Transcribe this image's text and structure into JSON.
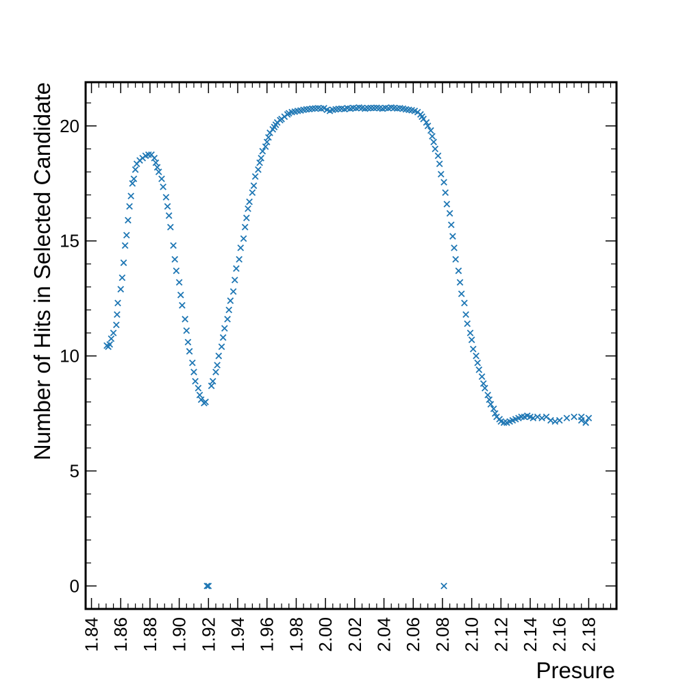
{
  "chart_data": {
    "type": "scatter",
    "title": "",
    "xlabel": "Presure",
    "ylabel": "Number of Hits in Selected Candidate",
    "xlim": [
      1.836,
      2.199
    ],
    "ylim": [
      -1.0,
      21.9
    ],
    "x_ticks": [
      "1.84",
      "1.86",
      "1.88",
      "1.90",
      "1.92",
      "1.94",
      "1.96",
      "1.98",
      "2.00",
      "2.02",
      "2.04",
      "2.06",
      "2.08",
      "2.10",
      "2.12",
      "2.14",
      "2.16",
      "2.18"
    ],
    "y_ticks": [
      "0",
      "5",
      "10",
      "15",
      "20"
    ],
    "marker": "x",
    "color": "#1f77b4",
    "grid": false,
    "series": [
      {
        "points": [
          [
            1.8505,
            10.45
          ],
          [
            1.8515,
            10.4
          ],
          [
            1.8525,
            10.5
          ],
          [
            1.8535,
            10.75
          ],
          [
            1.855,
            11.0
          ],
          [
            1.857,
            11.35
          ],
          [
            1.8575,
            11.8
          ],
          [
            1.858,
            12.3
          ],
          [
            1.86,
            12.9
          ],
          [
            1.861,
            13.4
          ],
          [
            1.862,
            14.05
          ],
          [
            1.863,
            14.8
          ],
          [
            1.864,
            15.25
          ],
          [
            1.865,
            15.9
          ],
          [
            1.866,
            16.5
          ],
          [
            1.867,
            16.95
          ],
          [
            1.868,
            17.5
          ],
          [
            1.869,
            17.7
          ],
          [
            1.87,
            18.1
          ],
          [
            1.871,
            18.35
          ],
          [
            1.873,
            18.5
          ],
          [
            1.875,
            18.6
          ],
          [
            1.877,
            18.7
          ],
          [
            1.879,
            18.75
          ],
          [
            1.881,
            18.75
          ],
          [
            1.883,
            18.6
          ],
          [
            1.884,
            18.4
          ],
          [
            1.885,
            18.2
          ],
          [
            1.886,
            18.0
          ],
          [
            1.888,
            17.7
          ],
          [
            1.889,
            17.35
          ],
          [
            1.891,
            16.9
          ],
          [
            1.892,
            16.5
          ],
          [
            1.893,
            16.1
          ],
          [
            1.894,
            15.6
          ],
          [
            1.896,
            14.8
          ],
          [
            1.897,
            14.2
          ],
          [
            1.898,
            13.7
          ],
          [
            1.9,
            13.2
          ],
          [
            1.901,
            12.65
          ],
          [
            1.902,
            12.2
          ],
          [
            1.904,
            11.6
          ],
          [
            1.905,
            11.1
          ],
          [
            1.906,
            10.6
          ],
          [
            1.907,
            10.2
          ],
          [
            1.909,
            9.7
          ],
          [
            1.91,
            9.3
          ],
          [
            1.911,
            8.9
          ],
          [
            1.913,
            8.6
          ],
          [
            1.914,
            8.3
          ],
          [
            1.915,
            8.1
          ],
          [
            1.917,
            7.95
          ],
          [
            1.918,
            8.0
          ],
          [
            1.919,
            0.0
          ],
          [
            1.92,
            0.0
          ],
          [
            1.922,
            8.7
          ],
          [
            1.923,
            8.9
          ],
          [
            1.925,
            9.3
          ],
          [
            1.926,
            9.6
          ],
          [
            1.927,
            10.0
          ],
          [
            1.929,
            10.4
          ],
          [
            1.93,
            10.8
          ],
          [
            1.931,
            11.2
          ],
          [
            1.933,
            11.6
          ],
          [
            1.934,
            12.0
          ],
          [
            1.935,
            12.4
          ],
          [
            1.937,
            12.8
          ],
          [
            1.938,
            13.3
          ],
          [
            1.939,
            13.8
          ],
          [
            1.941,
            14.2
          ],
          [
            1.942,
            14.7
          ],
          [
            1.944,
            15.1
          ],
          [
            1.945,
            15.6
          ],
          [
            1.946,
            16.0
          ],
          [
            1.947,
            16.4
          ],
          [
            1.948,
            16.7
          ],
          [
            1.95,
            17.1
          ],
          [
            1.951,
            17.4
          ],
          [
            1.952,
            17.8
          ],
          [
            1.954,
            18.1
          ],
          [
            1.955,
            18.4
          ],
          [
            1.956,
            18.6
          ],
          [
            1.957,
            18.9
          ],
          [
            1.959,
            19.1
          ],
          [
            1.96,
            19.3
          ],
          [
            1.961,
            19.5
          ],
          [
            1.962,
            19.7
          ],
          [
            1.964,
            19.85
          ],
          [
            1.965,
            19.95
          ],
          [
            1.966,
            20.05
          ],
          [
            1.967,
            20.15
          ],
          [
            1.969,
            20.25
          ],
          [
            1.97,
            20.3
          ],
          [
            1.972,
            20.4
          ],
          [
            1.974,
            20.5
          ],
          [
            1.975,
            20.55
          ],
          [
            1.977,
            20.6
          ],
          [
            1.979,
            20.62
          ],
          [
            1.981,
            20.65
          ],
          [
            1.983,
            20.67
          ],
          [
            1.985,
            20.7
          ],
          [
            1.987,
            20.72
          ],
          [
            1.989,
            20.73
          ],
          [
            1.991,
            20.75
          ],
          [
            1.993,
            20.76
          ],
          [
            1.995,
            20.77
          ],
          [
            1.997,
            20.75
          ],
          [
            1.999,
            20.77
          ],
          [
            2.001,
            20.7
          ],
          [
            2.003,
            20.65
          ],
          [
            2.005,
            20.7
          ],
          [
            2.007,
            20.72
          ],
          [
            2.009,
            20.74
          ],
          [
            2.011,
            20.75
          ],
          [
            2.013,
            20.73
          ],
          [
            2.015,
            20.77
          ],
          [
            2.017,
            20.75
          ],
          [
            2.019,
            20.78
          ],
          [
            2.021,
            20.77
          ],
          [
            2.023,
            20.8
          ],
          [
            2.025,
            20.78
          ],
          [
            2.027,
            20.75
          ],
          [
            2.029,
            20.77
          ],
          [
            2.031,
            20.78
          ],
          [
            2.033,
            20.78
          ],
          [
            2.035,
            20.79
          ],
          [
            2.037,
            20.77
          ],
          [
            2.039,
            20.75
          ],
          [
            2.041,
            20.78
          ],
          [
            2.043,
            20.77
          ],
          [
            2.045,
            20.8
          ],
          [
            2.047,
            20.78
          ],
          [
            2.049,
            20.76
          ],
          [
            2.051,
            20.77
          ],
          [
            2.053,
            20.75
          ],
          [
            2.055,
            20.72
          ],
          [
            2.057,
            20.7
          ],
          [
            2.059,
            20.68
          ],
          [
            2.061,
            20.65
          ],
          [
            2.063,
            20.6
          ],
          [
            2.065,
            20.5
          ],
          [
            2.066,
            20.4
          ],
          [
            2.067,
            20.3
          ],
          [
            2.069,
            20.15
          ],
          [
            2.07,
            20.0
          ],
          [
            2.072,
            19.8
          ],
          [
            2.073,
            19.55
          ],
          [
            2.074,
            19.3
          ],
          [
            2.075,
            19.0
          ],
          [
            2.077,
            18.7
          ],
          [
            2.078,
            18.35
          ],
          [
            2.079,
            17.9
          ],
          [
            2.081,
            17.55
          ],
          [
            2.082,
            17.1
          ],
          [
            2.083,
            16.6
          ],
          [
            2.085,
            16.2
          ],
          [
            2.086,
            15.7
          ],
          [
            2.087,
            15.2
          ],
          [
            2.088,
            14.7
          ],
          [
            2.089,
            14.2
          ],
          [
            2.091,
            13.7
          ],
          [
            2.092,
            13.2
          ],
          [
            2.093,
            12.7
          ],
          [
            2.095,
            12.3
          ],
          [
            2.096,
            11.8
          ],
          [
            2.097,
            11.4
          ],
          [
            2.099,
            11.0
          ],
          [
            2.1,
            10.7
          ],
          [
            2.101,
            10.3
          ],
          [
            2.103,
            10.0
          ],
          [
            2.104,
            9.7
          ],
          [
            2.105,
            9.4
          ],
          [
            2.107,
            9.1
          ],
          [
            2.108,
            8.8
          ],
          [
            2.109,
            8.6
          ],
          [
            2.111,
            8.3
          ],
          [
            2.112,
            8.1
          ],
          [
            2.113,
            7.9
          ],
          [
            2.115,
            7.7
          ],
          [
            2.116,
            7.5
          ],
          [
            2.117,
            7.35
          ],
          [
            2.119,
            7.25
          ],
          [
            2.12,
            7.15
          ],
          [
            2.122,
            7.1
          ],
          [
            2.124,
            7.1
          ],
          [
            2.126,
            7.15
          ],
          [
            2.128,
            7.2
          ],
          [
            2.13,
            7.25
          ],
          [
            2.132,
            7.3
          ],
          [
            2.134,
            7.35
          ],
          [
            2.136,
            7.35
          ],
          [
            2.138,
            7.4
          ],
          [
            2.14,
            7.35
          ],
          [
            2.142,
            7.3
          ],
          [
            2.145,
            7.35
          ],
          [
            2.148,
            7.3
          ],
          [
            2.151,
            7.35
          ],
          [
            2.154,
            7.2
          ],
          [
            2.157,
            7.15
          ],
          [
            2.16,
            7.2
          ],
          [
            2.165,
            7.3
          ],
          [
            2.17,
            7.35
          ],
          [
            2.175,
            7.35
          ],
          [
            2.18,
            7.3
          ],
          [
            2.175,
            7.2
          ],
          [
            2.178,
            7.1
          ],
          [
            2.081,
            0.0
          ]
        ]
      }
    ]
  }
}
